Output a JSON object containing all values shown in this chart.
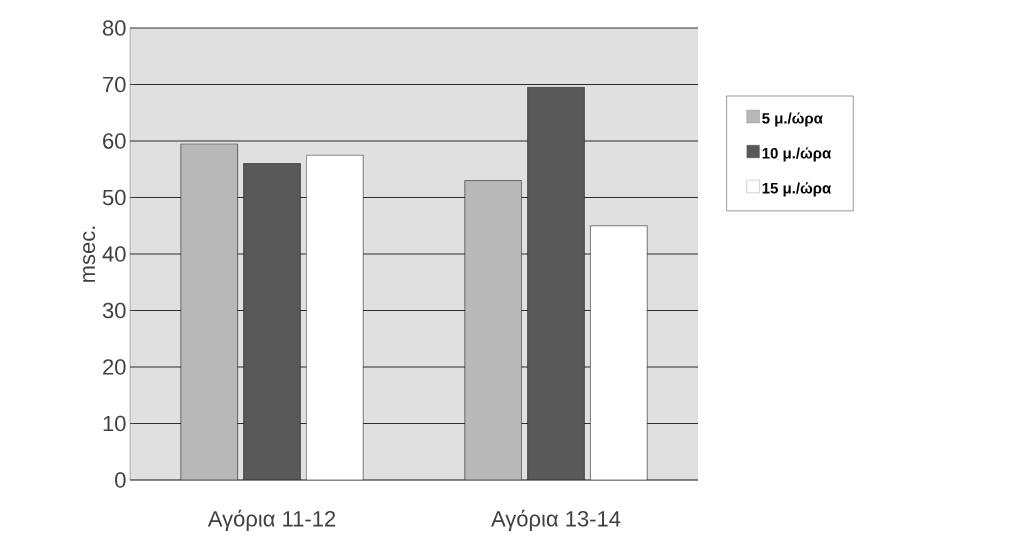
{
  "chart_data": {
    "type": "bar",
    "ylabel": "msec.",
    "categories": [
      "Αγόρια 11-12",
      "Αγόρια 13-14"
    ],
    "series": [
      {
        "name": "5 μ./ώρα",
        "color": "#b8b8b8",
        "values": [
          59.5,
          53
        ]
      },
      {
        "name": "10 μ./ώρα",
        "color": "#595959",
        "values": [
          56,
          69.5
        ]
      },
      {
        "name": "15 μ./ώρα",
        "color": "#ffffff",
        "values": [
          57.5,
          45
        ]
      }
    ],
    "ylim": [
      0,
      80
    ],
    "yticks": [
      0,
      10,
      20,
      30,
      40,
      50,
      60,
      70,
      80
    ],
    "grid": "y",
    "legend": "right"
  }
}
